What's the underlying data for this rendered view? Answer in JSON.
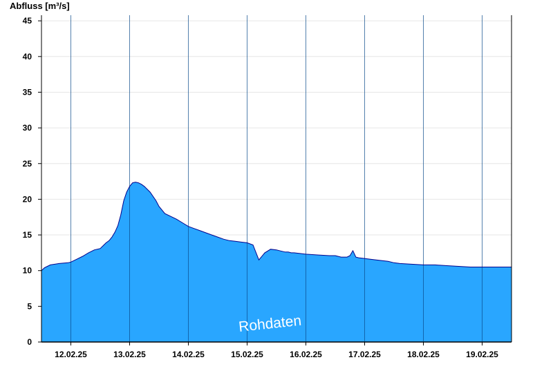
{
  "chart_data": {
    "type": "area",
    "title": "",
    "xlabel": "",
    "ylabel": "Abfluss [m³/s]",
    "ylim": [
      0,
      46
    ],
    "yticks": [
      0,
      5,
      10,
      15,
      20,
      25,
      30,
      35,
      40,
      45
    ],
    "x_tick_labels": [
      "12.02.25",
      "13.02.25",
      "14.02.25",
      "15.02.25",
      "16.02.25",
      "17.02.25",
      "18.02.25",
      "19.02.25"
    ],
    "x_unit": "day",
    "xlim": [
      11.5,
      19.5
    ],
    "grid": true,
    "annotation": "Rohdaten",
    "colors": {
      "fill": "#29A6FF",
      "line": "#00008B",
      "grid": "#e6e6e6"
    },
    "series": [
      {
        "x": [
          11.5,
          11.55,
          11.6,
          11.65,
          11.8,
          11.95,
          12.0,
          12.1,
          12.2,
          12.3,
          12.4,
          12.5,
          12.55,
          12.6,
          12.65,
          12.7,
          12.75,
          12.8,
          12.85,
          12.9,
          12.95,
          13.0,
          13.05,
          13.1,
          13.15,
          13.2,
          13.25,
          13.35,
          13.45,
          13.5,
          13.55,
          13.6,
          13.7,
          13.8,
          13.9,
          14.0,
          14.1,
          14.2,
          14.3,
          14.4,
          14.5,
          14.6,
          14.7,
          14.8,
          14.9,
          15.0,
          15.1,
          15.2,
          15.3,
          15.4,
          15.5,
          15.55,
          15.6,
          15.65,
          15.7,
          15.75,
          15.8,
          15.9,
          16.0,
          16.2,
          16.4,
          16.5,
          16.6,
          16.7,
          16.75,
          16.8,
          16.85,
          16.9,
          17.0,
          17.1,
          17.2,
          17.3,
          17.4,
          17.5,
          17.6,
          17.8,
          18.0,
          18.2,
          18.4,
          18.6,
          18.8,
          19.0,
          19.2,
          19.5
        ],
        "values": [
          10.0,
          10.4,
          10.6,
          10.8,
          11.0,
          11.1,
          11.2,
          11.6,
          12.0,
          12.5,
          12.9,
          13.1,
          13.5,
          13.9,
          14.2,
          14.7,
          15.4,
          16.3,
          17.8,
          19.8,
          21.0,
          21.8,
          22.3,
          22.4,
          22.3,
          22.1,
          21.8,
          21.0,
          19.8,
          19.0,
          18.5,
          18.0,
          17.6,
          17.2,
          16.7,
          16.2,
          15.9,
          15.6,
          15.3,
          15.0,
          14.7,
          14.4,
          14.2,
          14.1,
          14.0,
          13.9,
          13.6,
          11.5,
          12.5,
          13.0,
          12.9,
          12.8,
          12.7,
          12.6,
          12.6,
          12.5,
          12.5,
          12.4,
          12.3,
          12.2,
          12.1,
          12.1,
          11.9,
          11.9,
          12.1,
          12.8,
          11.9,
          11.8,
          11.7,
          11.6,
          11.5,
          11.4,
          11.3,
          11.1,
          11.0,
          10.9,
          10.8,
          10.8,
          10.7,
          10.6,
          10.5,
          10.5,
          10.5,
          10.5
        ]
      }
    ]
  }
}
